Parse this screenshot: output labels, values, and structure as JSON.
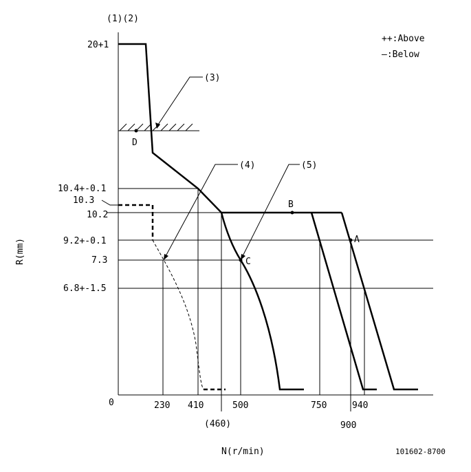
{
  "header": {
    "label": "(1)(2)"
  },
  "legend": {
    "above": "++:Above",
    "below": "—:Below"
  },
  "axes": {
    "y_label": "R(mm)",
    "x_label": "N(r/min)",
    "origin": "0"
  },
  "y_ticks": [
    "20+1",
    "10.4+-0.1",
    "10.3",
    "10.2",
    "9.2+-0.1",
    "7.3",
    "6.8+-1.5"
  ],
  "x_ticks": [
    "230",
    "410",
    "500",
    "750",
    "940"
  ],
  "x_ticks_lower": [
    "(460)",
    "900"
  ],
  "callouts": [
    "(3)",
    "(4)",
    "(5)"
  ],
  "points": {
    "a": "A",
    "b": "B",
    "c": "C",
    "d": "D"
  },
  "part_number": "101602-8700"
}
